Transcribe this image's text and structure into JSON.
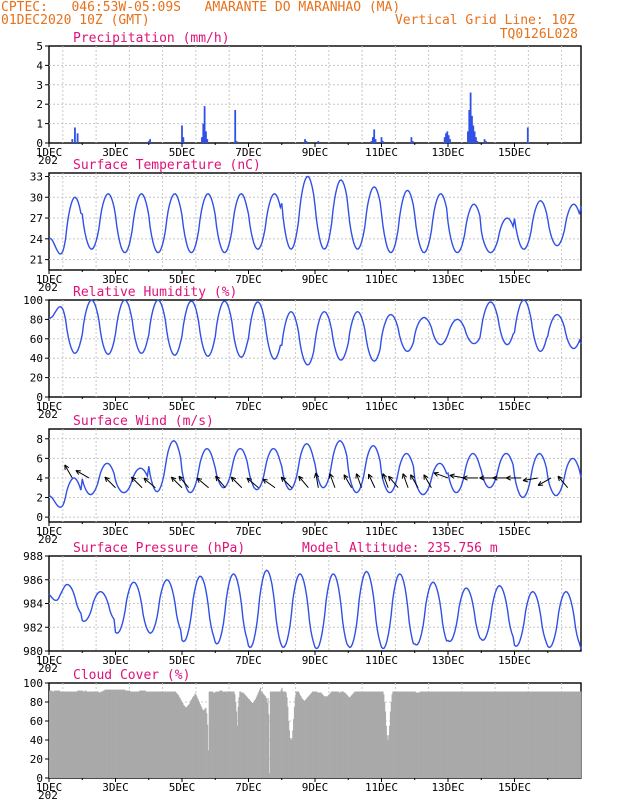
{
  "header": {
    "line1": "CPTEC:   046:53W-05:09S   AMARANTE DO MARANHAO (MA)",
    "line2": "01DEC2020 10Z (GMT)",
    "vgrid": "Vertical Grid Line: 10Z",
    "code": "TQ0126L028"
  },
  "colors": {
    "header": "#e8711a",
    "title": "#e0127a",
    "series": "#3050e6",
    "cloud": "#a9a9a9",
    "grid": "#c8c8c8"
  },
  "x_tick_labels": [
    "1DEC",
    "3DEC",
    "5DEC",
    "7DEC",
    "9DEC",
    "11DEC",
    "13DEC",
    "15DEC"
  ],
  "year_stub": "202",
  "model_altitude": "Model Altitude: 235.756 m",
  "chart_data": [
    {
      "type": "bar",
      "title": "Precipitation (mm/h)",
      "x_unit": "days since 1DEC2020 00Z",
      "ylim": [
        0,
        5
      ],
      "yticks": [
        0,
        1,
        2,
        3,
        4,
        5
      ],
      "x": [
        0.7,
        0.78,
        0.86,
        3.0,
        3.04,
        4.0,
        4.04,
        4.6,
        4.64,
        4.68,
        4.72,
        4.76,
        5.6,
        5.64,
        7.7,
        7.74,
        8.1,
        8.14,
        9.7,
        9.74,
        9.78,
        9.82,
        10.0,
        10.04,
        10.9,
        10.94,
        11.9,
        11.94,
        11.98,
        12.02,
        12.06,
        12.6,
        12.64,
        12.68,
        12.72,
        12.76,
        12.8,
        12.84,
        12.88,
        13.1,
        13.14,
        14.4
      ],
      "values": [
        0.2,
        0.8,
        0.5,
        0.1,
        0.2,
        0.9,
        0.3,
        0.3,
        1.0,
        1.9,
        0.6,
        0.2,
        1.7,
        0.1,
        0.2,
        0.1,
        0.1,
        0.05,
        0.1,
        0.3,
        0.7,
        0.2,
        0.3,
        0.1,
        0.3,
        0.1,
        0.3,
        0.5,
        0.6,
        0.4,
        0.2,
        0.6,
        1.7,
        2.6,
        1.4,
        0.9,
        0.6,
        0.3,
        0.1,
        0.2,
        0.1,
        0.8
      ]
    },
    {
      "type": "line",
      "title": "Surface Temperature (nC)",
      "x_unit": "days since 1DEC2020 00Z",
      "ylim": [
        19.5,
        33.5
      ],
      "yticks": [
        21,
        24,
        27,
        30,
        33
      ],
      "daily_max": [
        30,
        30.5,
        30.5,
        30.5,
        30.5,
        30.5,
        30.5,
        33,
        32.5,
        31.5,
        31,
        30.5,
        29,
        27,
        29.5,
        29,
        32
      ],
      "daily_min": [
        20.5,
        22.5,
        22,
        22,
        22,
        22,
        22.5,
        22.5,
        22.5,
        22.5,
        22,
        22,
        22,
        22,
        22.5,
        23,
        23
      ]
    },
    {
      "type": "line",
      "title": "Relative Humidity (%)",
      "x_unit": "days since 1DEC2020 00Z",
      "ylim": [
        0,
        100
      ],
      "yticks": [
        0,
        20,
        40,
        60,
        80,
        100
      ],
      "daily_max": [
        100,
        100,
        100,
        100,
        99,
        99,
        98,
        88,
        88,
        88,
        85,
        82,
        80,
        98,
        100,
        85,
        90
      ],
      "daily_min": [
        45,
        44,
        45,
        43,
        42,
        41,
        39,
        33,
        38,
        37,
        47,
        54,
        55,
        54,
        47,
        50,
        34
      ]
    },
    {
      "type": "line",
      "title": "Surface Wind (m/s)",
      "x_unit": "days since 1DEC2020 00Z",
      "ylim": [
        -0.5,
        9
      ],
      "yticks": [
        0,
        2,
        4,
        6,
        8
      ],
      "daily_max": [
        4,
        5.5,
        5,
        7.8,
        7,
        7,
        7,
        7.5,
        7.8,
        7.3,
        6.5,
        5.5,
        6.5,
        6.5,
        6.5,
        6,
        5.8
      ],
      "daily_min": [
        0.2,
        2.3,
        2.5,
        2.6,
        2.5,
        3,
        2.8,
        2.8,
        3,
        2.5,
        2.5,
        2.3,
        2.5,
        3,
        2,
        2.2,
        2.3
      ],
      "arrow_x": [
        0.7,
        1.2,
        2.0,
        2.8,
        3.2,
        4.0,
        4.2,
        4.8,
        5.3,
        5.8,
        6.3,
        6.8,
        7.3,
        7.8,
        8.1,
        8.6,
        9.1,
        9.4,
        9.8,
        10.2,
        10.5,
        10.8,
        11.1,
        11.5,
        12.0,
        12.5,
        12.9,
        13.4,
        13.8,
        14.2,
        14.7,
        15.1,
        15.6
      ],
      "arrow_y": [
        4,
        4,
        3,
        3,
        3,
        3,
        3,
        3,
        3,
        3,
        3,
        3,
        3,
        3,
        3,
        3,
        3,
        3,
        3,
        3,
        3,
        3,
        3,
        3,
        4,
        4,
        4,
        4,
        4,
        4,
        4,
        4,
        3
      ],
      "arrow_dir_deg": [
        240,
        210,
        225,
        225,
        220,
        225,
        230,
        220,
        230,
        225,
        220,
        215,
        225,
        230,
        260,
        250,
        240,
        250,
        245,
        250,
        230,
        250,
        240,
        240,
        200,
        190,
        180,
        180,
        180,
        180,
        170,
        150,
        230
      ]
    },
    {
      "type": "line",
      "title": "Surface Pressure (hPa)",
      "x_unit": "days since 1DEC2020 00Z",
      "ylim": [
        980,
        988
      ],
      "yticks": [
        980,
        982,
        984,
        986,
        988
      ],
      "daily_max": [
        985.6,
        985,
        985.8,
        986,
        986.3,
        986.5,
        986.8,
        986.5,
        986.5,
        986.7,
        986.5,
        985.8,
        985.3,
        985.5,
        985,
        985,
        984.8
      ],
      "daily_min": [
        983,
        982.5,
        981.5,
        981.5,
        980.8,
        980.6,
        980.3,
        980.3,
        980.2,
        980.3,
        980.2,
        980.5,
        980.8,
        980.9,
        980.4,
        980.3,
        980.1
      ]
    },
    {
      "type": "bar",
      "title": "Cloud Cover (%)",
      "x_unit": "days since 1DEC2020 00Z",
      "ylim": [
        0,
        100
      ],
      "yticks": [
        0,
        20,
        40,
        60,
        80,
        100
      ],
      "values": [
        92,
        92,
        92,
        92,
        91,
        91,
        92,
        92,
        92,
        92,
        92,
        92,
        92,
        91,
        91,
        91,
        91,
        91,
        91,
        91,
        91,
        91,
        91,
        91,
        91,
        91,
        91,
        91,
        91,
        91,
        91,
        91,
        91,
        91,
        92,
        92,
        92,
        92,
        92,
        92,
        92,
        91,
        91,
        92,
        92,
        91,
        91,
        91,
        91,
        91,
        91,
        91,
        91,
        91,
        91,
        91,
        91,
        91,
        91,
        91,
        90,
        90,
        91,
        91,
        91,
        92,
        92,
        93,
        93,
        93,
        93,
        93,
        93,
        93,
        93,
        93,
        93,
        93,
        93,
        93,
        93,
        93,
        93,
        93,
        93,
        93,
        93,
        93,
        93,
        93,
        93,
        93,
        92,
        92,
        92,
        92,
        92,
        92,
        91,
        91,
        91,
        91,
        91,
        91,
        91,
        91,
        91,
        91,
        91,
        92,
        92,
        92,
        92,
        92,
        92,
        92,
        92,
        91,
        91,
        91,
        91,
        91,
        91,
        91,
        91,
        91,
        91,
        91,
        91,
        91,
        91,
        91,
        91,
        91,
        91,
        91,
        91,
        91,
        91,
        91,
        91,
        91,
        91,
        91,
        91,
        91,
        91,
        91,
        91,
        91,
        91,
        91,
        91,
        90,
        89,
        88,
        87,
        85,
        84,
        82,
        80,
        79,
        77,
        76,
        75,
        74,
        75,
        76,
        77,
        78,
        80,
        82,
        83,
        85,
        86,
        87,
        89,
        88,
        86,
        84,
        82,
        80,
        78,
        76,
        74,
        72,
        71,
        72,
        73,
        74,
        68,
        56,
        29,
        91,
        91,
        91,
        91,
        91,
        90,
        90,
        90,
        91,
        91,
        91,
        91,
        91,
        92,
        92,
        92,
        91,
        91,
        91,
        91,
        91,
        91,
        91,
        91,
        91,
        91,
        91,
        91,
        91,
        91,
        91,
        88,
        80,
        70,
        55,
        75,
        85,
        91,
        91,
        90,
        90,
        90,
        89,
        88,
        87,
        86,
        85,
        84,
        83,
        82,
        81,
        80,
        79,
        79,
        80,
        82,
        83,
        85,
        87,
        89,
        91,
        93,
        95,
        91,
        90,
        89,
        88,
        87,
        86,
        84,
        79,
        84,
        67,
        5,
        91,
        91,
        91,
        91,
        91,
        91,
        91,
        91,
        91,
        91,
        91,
        91,
        91,
        93,
        95,
        91,
        91,
        91,
        91,
        90,
        85,
        75,
        60,
        50,
        42,
        40,
        42,
        50,
        62,
        75,
        85,
        91,
        91,
        91,
        91,
        89,
        87,
        86,
        84,
        83,
        82,
        81,
        82,
        83,
        84,
        85,
        86,
        87,
        88,
        89,
        90,
        91,
        91,
        91,
        91,
        91,
        91,
        90,
        90,
        90,
        90,
        90,
        89,
        88,
        87,
        86,
        86,
        86,
        86,
        86,
        87,
        88,
        89,
        90,
        91,
        91,
        91,
        91,
        91,
        91,
        91,
        91,
        91,
        90,
        90,
        91,
        91,
        91,
        91,
        90,
        90,
        89,
        88,
        87,
        86,
        85,
        85,
        86,
        87,
        88,
        89,
        90,
        91,
        91,
        91,
        91,
        91,
        91,
        91,
        91,
        91,
        91,
        91,
        91,
        91,
        91,
        91,
        91,
        91,
        91,
        91,
        91,
        91,
        91,
        91,
        91,
        91,
        91,
        91,
        91,
        91,
        91,
        91,
        91,
        91,
        91,
        91,
        88,
        80,
        70,
        55,
        45,
        40,
        45,
        55,
        70,
        80,
        88,
        91,
        91,
        91,
        91,
        91,
        91,
        91,
        91,
        91,
        91,
        91,
        91,
        91,
        91,
        91,
        91,
        91,
        91,
        91,
        91,
        91,
        91,
        91,
        91,
        91,
        91,
        91,
        91,
        90,
        90,
        90,
        90,
        90,
        91,
        91,
        91,
        91,
        91,
        91,
        91,
        91,
        91,
        91,
        91,
        91,
        91,
        91,
        91,
        91,
        91,
        91,
        91,
        91,
        91,
        91,
        91,
        91,
        91,
        91,
        91,
        91,
        91,
        91,
        91,
        91,
        91,
        91,
        91,
        91,
        91,
        91,
        91,
        91,
        91,
        91,
        91,
        91,
        91,
        91,
        91,
        91,
        91,
        91,
        91,
        91,
        91,
        91,
        91,
        91,
        91,
        91,
        91,
        91,
        91,
        91,
        91,
        91,
        91,
        91,
        91,
        91,
        91,
        91,
        91,
        91,
        91,
        91,
        91,
        91,
        91,
        91,
        91,
        91,
        91,
        91,
        91,
        91,
        91,
        91,
        91,
        91,
        91,
        91,
        91,
        91,
        91,
        91,
        91,
        91,
        91,
        91,
        91,
        91,
        91,
        91,
        91,
        91,
        91,
        91,
        91,
        91,
        91,
        91,
        91,
        91,
        91,
        91,
        91,
        91,
        91,
        91,
        91,
        91,
        91,
        91,
        91,
        91,
        91,
        91,
        91,
        91,
        91,
        91,
        91,
        91,
        91,
        91,
        91,
        91,
        91,
        91,
        91,
        91,
        91,
        91,
        91,
        91,
        91,
        91,
        91,
        91,
        91,
        91,
        91,
        91,
        91,
        91,
        91,
        91,
        91,
        91,
        91,
        91,
        91,
        91,
        91,
        91,
        91,
        91,
        91,
        91,
        91,
        91,
        91,
        91,
        91,
        91,
        91,
        91,
        91,
        91,
        91,
        91,
        91,
        91,
        91,
        91,
        91,
        91,
        91,
        91,
        91,
        91,
        91,
        91,
        91,
        91,
        91
      ]
    }
  ]
}
